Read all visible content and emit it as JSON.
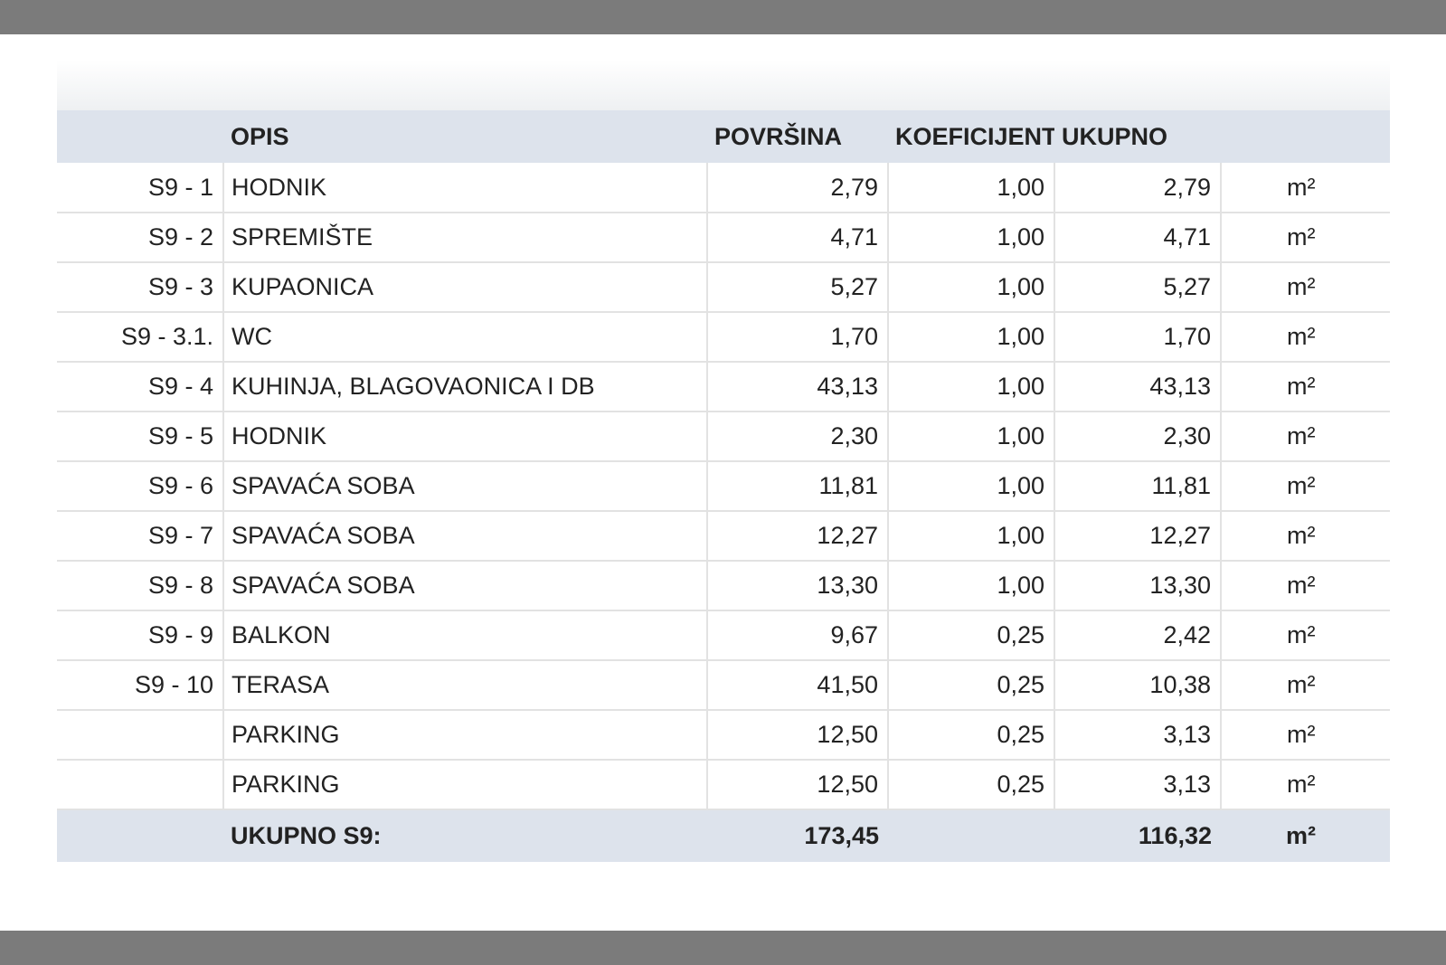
{
  "table": {
    "headers": {
      "opis": "OPIS",
      "povrsina": "POVRŠINA",
      "koeficijent": "KOEFICIJENT",
      "ukupno": "UKUPNO"
    },
    "rows": [
      {
        "code": "S9 - 1",
        "desc": "HODNIK",
        "povrsina": "2,79",
        "koef": "1,00",
        "ukupno": "2,79",
        "unit": "m²"
      },
      {
        "code": "S9 - 2",
        "desc": "SPREMIŠTE",
        "povrsina": "4,71",
        "koef": "1,00",
        "ukupno": "4,71",
        "unit": "m²"
      },
      {
        "code": "S9 - 3",
        "desc": "KUPAONICA",
        "povrsina": "5,27",
        "koef": "1,00",
        "ukupno": "5,27",
        "unit": "m²"
      },
      {
        "code": "S9 - 3.1.",
        "desc": "WC",
        "povrsina": "1,70",
        "koef": "1,00",
        "ukupno": "1,70",
        "unit": "m²"
      },
      {
        "code": "S9 - 4",
        "desc": "KUHINJA, BLAGOVAONICA I DB",
        "povrsina": "43,13",
        "koef": "1,00",
        "ukupno": "43,13",
        "unit": "m²"
      },
      {
        "code": "S9 - 5",
        "desc": "HODNIK",
        "povrsina": "2,30",
        "koef": "1,00",
        "ukupno": "2,30",
        "unit": "m²"
      },
      {
        "code": "S9 - 6",
        "desc": "SPAVAĆA SOBA",
        "povrsina": "11,81",
        "koef": "1,00",
        "ukupno": "11,81",
        "unit": "m²"
      },
      {
        "code": "S9 - 7",
        "desc": "SPAVAĆA SOBA",
        "povrsina": "12,27",
        "koef": "1,00",
        "ukupno": "12,27",
        "unit": "m²"
      },
      {
        "code": "S9 - 8",
        "desc": "SPAVAĆA SOBA",
        "povrsina": "13,30",
        "koef": "1,00",
        "ukupno": "13,30",
        "unit": "m²"
      },
      {
        "code": "S9 - 9",
        "desc": "BALKON",
        "povrsina": "9,67",
        "koef": "0,25",
        "ukupno": "2,42",
        "unit": "m²"
      },
      {
        "code": "S9 - 10",
        "desc": "TERASA",
        "povrsina": "41,50",
        "koef": "0,25",
        "ukupno": "10,38",
        "unit": "m²"
      },
      {
        "code": "",
        "desc": "PARKING",
        "povrsina": "12,50",
        "koef": "0,25",
        "ukupno": "3,13",
        "unit": "m²"
      },
      {
        "code": "",
        "desc": "PARKING",
        "povrsina": "12,50",
        "koef": "0,25",
        "ukupno": "3,13",
        "unit": "m²"
      }
    ],
    "total": {
      "label": "UKUPNO S9:",
      "povrsina": "173,45",
      "ukupno": "116,32",
      "unit": "m²"
    }
  }
}
